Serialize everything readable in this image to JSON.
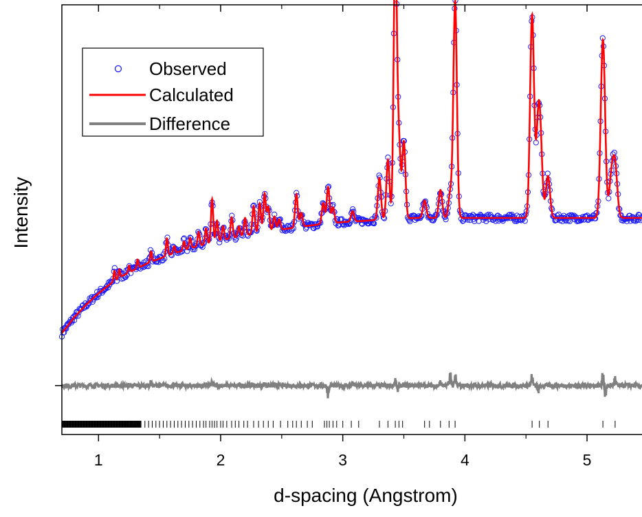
{
  "chart_data": {
    "type": "line",
    "title": "",
    "xlabel": "d-spacing (Angstrom)",
    "ylabel": "Intensity",
    "xlim": [
      0.7,
      5.45
    ],
    "ylim": [
      -0.14,
      1.09
    ],
    "x_ticks": [
      1,
      2,
      3,
      4,
      5
    ],
    "x_tick_labels": [
      "1",
      "2",
      "3",
      "4",
      "5"
    ],
    "y_ticks": [
      0
    ],
    "y_tick_labels": [
      ""
    ],
    "grid": false,
    "legend": {
      "placement": "top-left"
    },
    "colors": {
      "observed": "#1a1aff",
      "calculated": "#ff0000",
      "difference": "#808080",
      "ticks": "#000000"
    },
    "background": {
      "x": [
        0.7,
        0.8,
        0.9,
        1.0,
        1.1,
        1.2,
        1.4,
        1.6,
        1.8,
        2.0,
        2.2,
        2.4,
        2.6,
        2.8,
        3.0,
        3.2,
        3.3,
        3.6,
        4.0,
        4.5,
        5.0,
        5.45
      ],
      "y": [
        0.15,
        0.195,
        0.232,
        0.264,
        0.292,
        0.315,
        0.35,
        0.377,
        0.398,
        0.415,
        0.43,
        0.442,
        0.452,
        0.461,
        0.468,
        0.472,
        0.475,
        0.48,
        0.48,
        0.48,
        0.48,
        0.48
      ]
    },
    "peaks": [
      {
        "d": 1.13,
        "h": 0.03
      },
      {
        "d": 1.17,
        "h": 0.025
      },
      {
        "d": 1.25,
        "h": 0.02
      },
      {
        "d": 1.32,
        "h": 0.025
      },
      {
        "d": 1.43,
        "h": 0.03
      },
      {
        "d": 1.56,
        "h": 0.05
      },
      {
        "d": 1.62,
        "h": 0.02
      },
      {
        "d": 1.7,
        "h": 0.025
      },
      {
        "d": 1.75,
        "h": 0.03
      },
      {
        "d": 1.82,
        "h": 0.04
      },
      {
        "d": 1.88,
        "h": 0.045
      },
      {
        "d": 1.93,
        "h": 0.125
      },
      {
        "d": 1.97,
        "h": 0.06
      },
      {
        "d": 2.02,
        "h": 0.04
      },
      {
        "d": 2.09,
        "h": 0.06
      },
      {
        "d": 2.15,
        "h": 0.03
      },
      {
        "d": 2.2,
        "h": 0.05
      },
      {
        "d": 2.27,
        "h": 0.08
      },
      {
        "d": 2.32,
        "h": 0.085
      },
      {
        "d": 2.36,
        "h": 0.11
      },
      {
        "d": 2.39,
        "h": 0.07
      },
      {
        "d": 2.44,
        "h": 0.04
      },
      {
        "d": 2.48,
        "h": 0.03
      },
      {
        "d": 2.62,
        "h": 0.095
      },
      {
        "d": 2.66,
        "h": 0.04
      },
      {
        "d": 2.84,
        "h": 0.06
      },
      {
        "d": 2.88,
        "h": 0.105
      },
      {
        "d": 2.92,
        "h": 0.045
      },
      {
        "d": 3.08,
        "h": 0.03
      },
      {
        "d": 3.3,
        "h": 0.12
      },
      {
        "d": 3.37,
        "h": 0.17
      },
      {
        "d": 3.43,
        "h": 0.8
      },
      {
        "d": 3.46,
        "h": 0.21
      },
      {
        "d": 3.5,
        "h": 0.22
      },
      {
        "d": 3.67,
        "h": 0.05
      },
      {
        "d": 3.8,
        "h": 0.08
      },
      {
        "d": 3.88,
        "h": 0.07
      },
      {
        "d": 3.92,
        "h": 0.62
      },
      {
        "d": 4.55,
        "h": 0.58
      },
      {
        "d": 4.6,
        "h": 0.24
      },
      {
        "d": 4.62,
        "h": 0.16
      },
      {
        "d": 4.68,
        "h": 0.12
      },
      {
        "d": 5.13,
        "h": 0.51
      },
      {
        "d": 5.2,
        "h": 0.11
      },
      {
        "d": 5.23,
        "h": 0.14
      }
    ],
    "series": [
      {
        "name": "Observed",
        "style": "open-circle"
      },
      {
        "name": "Calculated",
        "style": "line"
      },
      {
        "name": "Difference",
        "style": "line"
      }
    ],
    "difference_features": [
      {
        "d": 1.43,
        "a": 0.012
      },
      {
        "d": 1.93,
        "a": 0.012
      },
      {
        "d": 2.36,
        "a": 0.01
      },
      {
        "d": 2.88,
        "a": -0.035
      },
      {
        "d": 3.08,
        "a": 0.01
      },
      {
        "d": 3.43,
        "a": 0.02
      },
      {
        "d": 3.45,
        "a": -0.02
      },
      {
        "d": 3.8,
        "a": 0.012
      },
      {
        "d": 3.88,
        "a": 0.04
      },
      {
        "d": 3.92,
        "a": 0.035
      },
      {
        "d": 4.55,
        "a": 0.035
      },
      {
        "d": 4.6,
        "a": -0.02
      },
      {
        "d": 5.13,
        "a": 0.05
      },
      {
        "d": 5.15,
        "a": -0.045
      },
      {
        "d": 5.23,
        "a": 0.025
      }
    ],
    "reflection_ticks": {
      "dense_range": [
        0.7,
        1.35
      ],
      "x": [
        1.38,
        1.41,
        1.44,
        1.47,
        1.5,
        1.53,
        1.56,
        1.59,
        1.62,
        1.65,
        1.68,
        1.71,
        1.74,
        1.77,
        1.8,
        1.83,
        1.86,
        1.88,
        1.91,
        1.93,
        1.95,
        1.97,
        2.0,
        2.02,
        2.05,
        2.09,
        2.12,
        2.15,
        2.19,
        2.22,
        2.27,
        2.31,
        2.35,
        2.39,
        2.43,
        2.49,
        2.55,
        2.59,
        2.62,
        2.66,
        2.71,
        2.75,
        2.85,
        2.87,
        2.89,
        2.92,
        2.95,
        3.0,
        3.07,
        3.13,
        3.3,
        3.37,
        3.43,
        3.46,
        3.49,
        3.67,
        3.71,
        3.8,
        3.87,
        3.92,
        4.55,
        4.61,
        4.68,
        5.13,
        5.23
      ]
    }
  }
}
